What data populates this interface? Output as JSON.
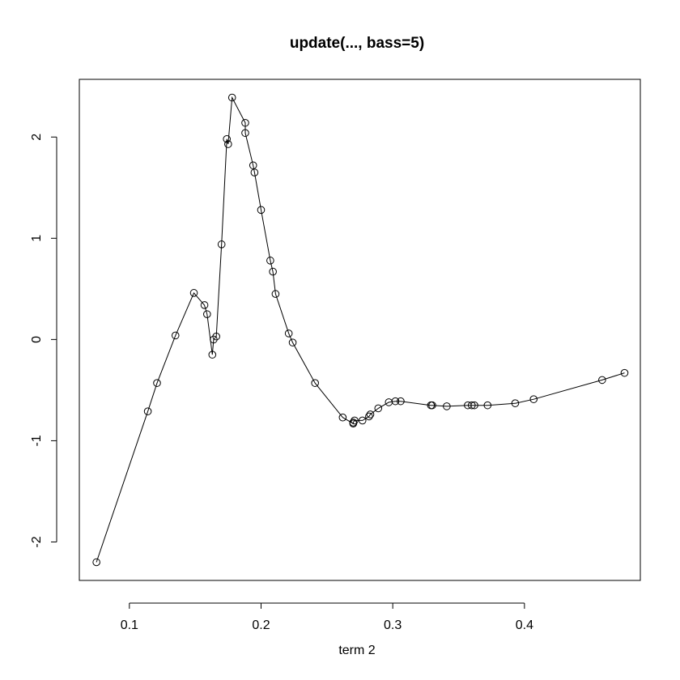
{
  "chart_data": {
    "type": "line",
    "title": "update(..., bass=5)",
    "xlabel": "term 2",
    "ylabel": "",
    "xlim": [
      0.062,
      0.488
    ],
    "ylim": [
      -2.38,
      2.57
    ],
    "xticks": [
      0.1,
      0.2,
      0.3,
      0.4
    ],
    "xtick_labels": [
      "0.1",
      "0.2",
      "0.3",
      "0.4"
    ],
    "yticks": [
      -2,
      -1,
      0,
      1,
      2
    ],
    "ytick_labels": [
      "-2",
      "-1",
      "0",
      "1",
      "2"
    ],
    "grid": false,
    "series": [
      {
        "marker": "open-circle",
        "line": true,
        "color": "#000000",
        "x": [
          0.075,
          0.114,
          0.121,
          0.135,
          0.149,
          0.157,
          0.159,
          0.163,
          0.164,
          0.166,
          0.17,
          0.174,
          0.175,
          0.178,
          0.188,
          0.188,
          0.194,
          0.195,
          0.2,
          0.207,
          0.209,
          0.211,
          0.221,
          0.224,
          0.241,
          0.262,
          0.27,
          0.27,
          0.271,
          0.277,
          0.282,
          0.283,
          0.289,
          0.297,
          0.302,
          0.306,
          0.329,
          0.33,
          0.341,
          0.357,
          0.36,
          0.362,
          0.372,
          0.393,
          0.407,
          0.459,
          0.476
        ],
        "y": [
          -2.2,
          -0.71,
          -0.43,
          0.04,
          0.46,
          0.34,
          0.25,
          -0.15,
          0.0,
          0.03,
          0.94,
          1.98,
          1.93,
          2.39,
          2.14,
          2.04,
          1.72,
          1.65,
          1.28,
          0.78,
          0.67,
          0.45,
          0.06,
          -0.03,
          -0.43,
          -0.77,
          -0.83,
          -0.82,
          -0.8,
          -0.8,
          -0.76,
          -0.74,
          -0.68,
          -0.62,
          -0.61,
          -0.61,
          -0.65,
          -0.65,
          -0.66,
          -0.65,
          -0.65,
          -0.65,
          -0.65,
          -0.63,
          -0.59,
          -0.4,
          -0.33
        ]
      }
    ]
  }
}
